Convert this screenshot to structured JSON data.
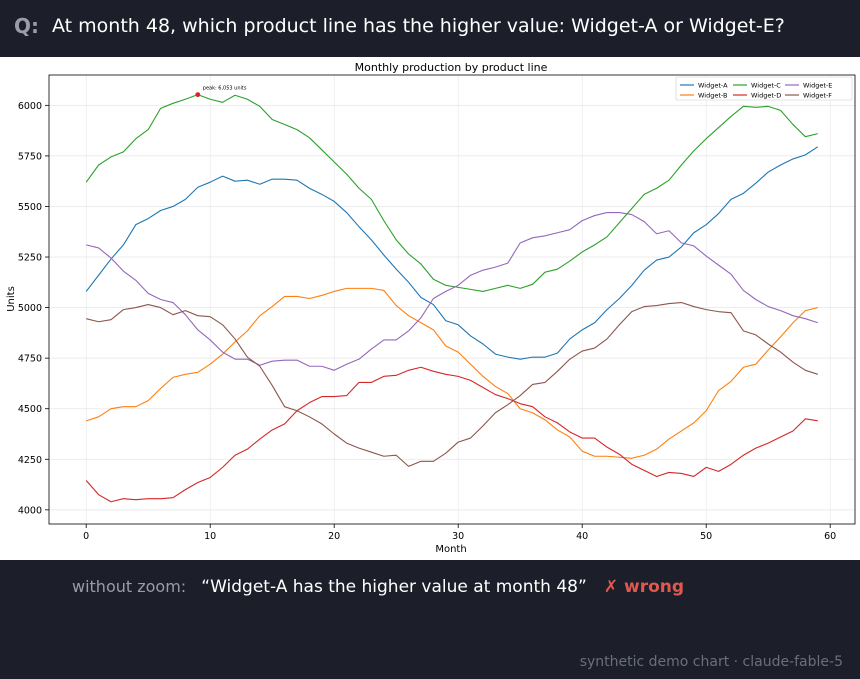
{
  "question": {
    "prefix": "Q:",
    "text": "At month 48, which product line has the higher value: Widget-A or Widget-E?"
  },
  "answer": {
    "label": "without zoom:",
    "quote": "“Widget-A has the higher value at month 48”",
    "verdict": "✗ wrong"
  },
  "footer": "synthetic demo chart · claude-fable-5",
  "chart_data": {
    "type": "line",
    "title": "Monthly production by product line",
    "xlabel": "Month",
    "ylabel": "Units",
    "xlim": [
      -3,
      62
    ],
    "ylim": [
      3930,
      6150
    ],
    "xticks": [
      0,
      10,
      20,
      30,
      40,
      50,
      60
    ],
    "yticks": [
      4000,
      4250,
      4500,
      4750,
      5000,
      5250,
      5500,
      5750,
      6000
    ],
    "grid": true,
    "legend": "top-right",
    "annotation": {
      "text": "peak: 6,053 units",
      "x": 9,
      "y": 6053,
      "series": "Widget-C"
    },
    "x": [
      0,
      1,
      2,
      3,
      4,
      5,
      6,
      7,
      8,
      9,
      10,
      11,
      12,
      13,
      14,
      15,
      16,
      17,
      18,
      19,
      20,
      21,
      22,
      23,
      24,
      25,
      26,
      27,
      28,
      29,
      30,
      31,
      32,
      33,
      34,
      35,
      36,
      37,
      38,
      39,
      40,
      41,
      42,
      43,
      44,
      45,
      46,
      47,
      48,
      49,
      50,
      51,
      52,
      53,
      54,
      55,
      56,
      57,
      58,
      59
    ],
    "series": [
      {
        "name": "Widget-A",
        "color": "#1f77b4",
        "values": [
          5080,
          5160,
          5240,
          5310,
          5410,
          5440,
          5480,
          5500,
          5535,
          5595,
          5620,
          5650,
          5625,
          5630,
          5610,
          5635,
          5635,
          5630,
          5590,
          5560,
          5525,
          5470,
          5400,
          5335,
          5260,
          5190,
          5125,
          5050,
          5015,
          4935,
          4915,
          4860,
          4820,
          4770,
          4755,
          4745,
          4755,
          4755,
          4775,
          4845,
          4890,
          4925,
          4990,
          5045,
          5110,
          5185,
          5235,
          5250,
          5300,
          5370,
          5410,
          5465,
          5535,
          5565,
          5615,
          5670,
          5705,
          5735,
          5755,
          5795
        ]
      },
      {
        "name": "Widget-B",
        "color": "#ff7f0e",
        "values": [
          4440,
          4460,
          4500,
          4510,
          4510,
          4540,
          4600,
          4655,
          4670,
          4680,
          4720,
          4770,
          4830,
          4885,
          4960,
          5005,
          5055,
          5055,
          5045,
          5060,
          5080,
          5095,
          5095,
          5095,
          5085,
          5010,
          4960,
          4925,
          4890,
          4810,
          4780,
          4720,
          4660,
          4610,
          4575,
          4500,
          4480,
          4445,
          4395,
          4360,
          4290,
          4265,
          4265,
          4260,
          4255,
          4270,
          4300,
          4350,
          4390,
          4430,
          4490,
          4590,
          4635,
          4705,
          4720,
          4790,
          4855,
          4925,
          4985,
          5000
        ]
      },
      {
        "name": "Widget-C",
        "color": "#2ca02c",
        "values": [
          5620,
          5705,
          5745,
          5770,
          5835,
          5880,
          5985,
          6010,
          6030,
          6053,
          6030,
          6015,
          6050,
          6030,
          5995,
          5930,
          5905,
          5880,
          5840,
          5780,
          5720,
          5660,
          5590,
          5535,
          5430,
          5335,
          5265,
          5215,
          5140,
          5110,
          5100,
          5090,
          5080,
          5095,
          5110,
          5095,
          5115,
          5175,
          5190,
          5230,
          5275,
          5310,
          5350,
          5420,
          5490,
          5560,
          5590,
          5630,
          5705,
          5775,
          5835,
          5890,
          5945,
          5995,
          5990,
          5995,
          5975,
          5905,
          5845,
          5860
        ]
      },
      {
        "name": "Widget-D",
        "color": "#d62728",
        "values": [
          4145,
          4075,
          4040,
          4055,
          4050,
          4055,
          4055,
          4060,
          4100,
          4135,
          4160,
          4210,
          4270,
          4300,
          4350,
          4395,
          4425,
          4490,
          4530,
          4560,
          4560,
          4565,
          4630,
          4630,
          4660,
          4665,
          4690,
          4705,
          4685,
          4670,
          4660,
          4640,
          4605,
          4570,
          4550,
          4525,
          4510,
          4460,
          4430,
          4385,
          4355,
          4355,
          4310,
          4275,
          4225,
          4195,
          4165,
          4185,
          4180,
          4165,
          4210,
          4190,
          4225,
          4270,
          4305,
          4330,
          4360,
          4390,
          4450,
          4440
        ]
      },
      {
        "name": "Widget-E",
        "color": "#9467bd",
        "values": [
          5310,
          5295,
          5245,
          5180,
          5135,
          5070,
          5040,
          5025,
          4965,
          4890,
          4840,
          4780,
          4745,
          4745,
          4715,
          4735,
          4740,
          4740,
          4710,
          4710,
          4690,
          4720,
          4745,
          4795,
          4840,
          4840,
          4885,
          4950,
          5045,
          5080,
          5110,
          5160,
          5185,
          5200,
          5220,
          5320,
          5345,
          5355,
          5370,
          5385,
          5430,
          5455,
          5470,
          5470,
          5460,
          5425,
          5365,
          5380,
          5320,
          5305,
          5255,
          5210,
          5165,
          5085,
          5040,
          5005,
          4985,
          4960,
          4945,
          4925
        ]
      },
      {
        "name": "Widget-F",
        "color": "#8c564b",
        "values": [
          4945,
          4930,
          4940,
          4990,
          5000,
          5015,
          5000,
          4965,
          4985,
          4960,
          4955,
          4915,
          4845,
          4755,
          4710,
          4615,
          4510,
          4490,
          4460,
          4425,
          4375,
          4330,
          4305,
          4285,
          4265,
          4270,
          4215,
          4240,
          4240,
          4280,
          4335,
          4355,
          4415,
          4480,
          4520,
          4565,
          4620,
          4630,
          4685,
          4745,
          4785,
          4800,
          4845,
          4915,
          4980,
          5005,
          5010,
          5020,
          5025,
          5005,
          4990,
          4980,
          4975,
          4885,
          4865,
          4820,
          4780,
          4730,
          4690,
          4670
        ]
      }
    ]
  }
}
